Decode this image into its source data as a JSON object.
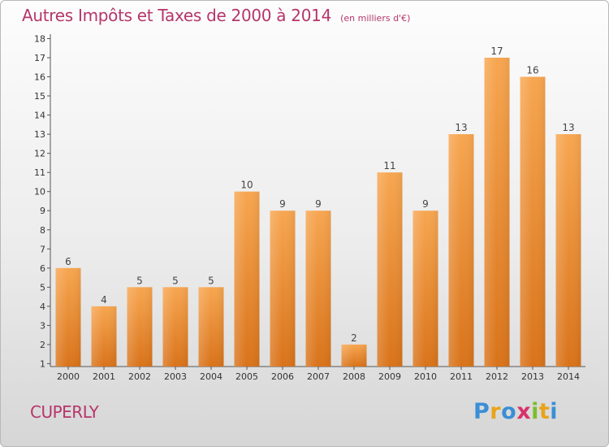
{
  "header": {
    "title": "Autres Impôts et Taxes de 2000 à 2014",
    "subtitle": "(en milliers d'€)"
  },
  "footer": {
    "place": "CUPERLY",
    "logo": {
      "text": "Proxiti",
      "letters": [
        "P",
        "r",
        "o",
        "x",
        "i",
        "t",
        "i"
      ]
    }
  },
  "chart_data": {
    "type": "bar",
    "categories": [
      "2000",
      "2001",
      "2002",
      "2003",
      "2004",
      "2005",
      "2006",
      "2007",
      "2008",
      "2009",
      "2010",
      "2011",
      "2012",
      "2013",
      "2014"
    ],
    "values": [
      6,
      4,
      5,
      5,
      5,
      10,
      9,
      9,
      2,
      11,
      9,
      13,
      17,
      16,
      13
    ],
    "title": "Autres Impôts et Taxes de 2000 à 2014",
    "xlabel": "",
    "ylabel": "",
    "ylim": [
      1,
      18
    ],
    "yticks": [
      1,
      2,
      3,
      4,
      5,
      6,
      7,
      8,
      9,
      10,
      11,
      12,
      13,
      14,
      15,
      16,
      17,
      18
    ],
    "grid": false,
    "colors": {
      "bar_light": "#f7a650",
      "bar_dark": "#d9731a"
    }
  }
}
